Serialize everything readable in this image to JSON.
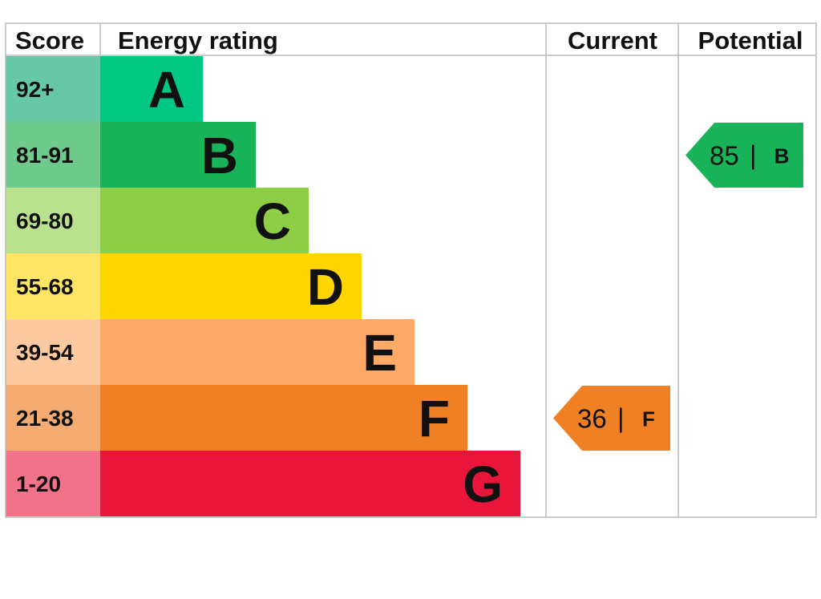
{
  "headers": {
    "score": "Score",
    "rating": "Energy rating",
    "current": "Current",
    "potential": "Potential"
  },
  "chart_data": {
    "type": "bar",
    "title": "",
    "bands": [
      {
        "letter": "A",
        "score_range": "92+",
        "color": "#00c781",
        "score_bg": "#66c8a6"
      },
      {
        "letter": "B",
        "score_range": "81-91",
        "color": "#19b459",
        "score_bg": "#6ecb8c"
      },
      {
        "letter": "C",
        "score_range": "69-80",
        "color": "#8dce46",
        "score_bg": "#bae28e"
      },
      {
        "letter": "D",
        "score_range": "55-68",
        "color": "#ffd500",
        "score_bg": "#ffe566"
      },
      {
        "letter": "E",
        "score_range": "39-54",
        "color": "#fcaa65",
        "score_bg": "#fdc9a0"
      },
      {
        "letter": "F",
        "score_range": "21-38",
        "color": "#ef8023",
        "score_bg": "#f4ab71"
      },
      {
        "letter": "G",
        "score_range": "1-20",
        "color": "#e9153b",
        "score_bg": "#f27289"
      }
    ],
    "current": {
      "value": 36,
      "letter": "F",
      "separator": "|",
      "color": "#ef8023"
    },
    "potential": {
      "value": 85,
      "letter": "B",
      "separator": "|",
      "color": "#19b459"
    }
  }
}
